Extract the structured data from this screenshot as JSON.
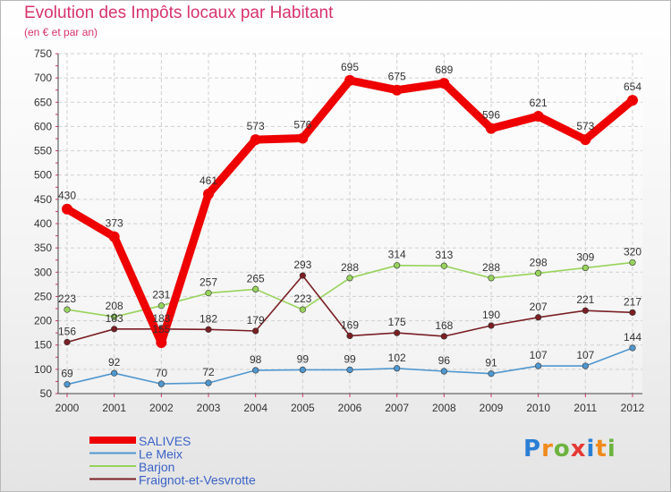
{
  "title": "Evolution des Impôts locaux par Habitant",
  "subtitle": "(en € et par an)",
  "logo_letters": [
    "P",
    "r",
    "o",
    "x",
    "i",
    "t",
    "i"
  ],
  "logo_colors": [
    "#2a7fd4",
    "#f08a1c",
    "#6db33f",
    "#e53935",
    "#2a7fd4",
    "#f08a1c",
    "#6db33f"
  ],
  "chart_data": {
    "type": "line",
    "x": [
      "2000",
      "2001",
      "2002",
      "2003",
      "2004",
      "2005",
      "2006",
      "2007",
      "2008",
      "2009",
      "2010",
      "2011",
      "2012"
    ],
    "ylim": [
      50,
      750
    ],
    "yticks": [
      50,
      100,
      150,
      200,
      250,
      300,
      350,
      400,
      450,
      500,
      550,
      600,
      650,
      700,
      750
    ],
    "grid": true,
    "legend_position": "bottom-left",
    "series": [
      {
        "name": "SALIVES",
        "color": "#ee0000",
        "values": [
          430,
          373,
          155,
          461,
          573,
          576,
          695,
          675,
          689,
          596,
          621,
          573,
          654
        ],
        "labels": [
          "430",
          "373",
          "155",
          "461",
          "573",
          "576",
          "695",
          "675",
          "689",
          "596",
          "621",
          "573",
          "654"
        ]
      },
      {
        "name": "Le Meix",
        "color": "#4f97cf",
        "values": [
          69,
          92,
          70,
          72,
          98,
          99,
          99,
          102,
          96,
          91,
          107,
          107,
          144
        ],
        "labels": [
          "69",
          "92",
          "70",
          "72",
          "98",
          "99",
          "99",
          "102",
          "96",
          "91",
          "107",
          "107",
          "144"
        ]
      },
      {
        "name": "Barjon",
        "color": "#97d35c",
        "values": [
          223,
          208,
          231,
          257,
          265,
          223,
          288,
          314,
          313,
          288,
          298,
          309,
          320
        ],
        "labels": [
          "223",
          "208",
          "231",
          "257",
          "265",
          "223",
          "288",
          "314",
          "313",
          "288",
          "298",
          "309",
          "320"
        ]
      },
      {
        "name": "Fraignot-et-Vesvrotte",
        "color": "#7a1f24",
        "values": [
          156,
          183,
          183,
          182,
          179,
          293,
          169,
          175,
          168,
          190,
          207,
          221,
          217
        ],
        "labels": [
          "156",
          "183",
          "183",
          "182",
          "179",
          "293",
          "169",
          "175",
          "168",
          "190",
          "207",
          "221",
          "217"
        ]
      }
    ]
  }
}
